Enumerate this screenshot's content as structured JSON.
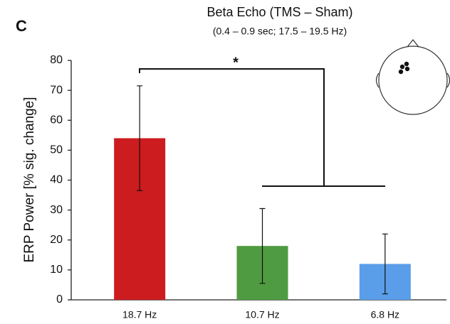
{
  "chart_data": {
    "type": "bar",
    "panel_label": "C",
    "title": "Beta Echo (TMS – Sham)",
    "subtitle": "(0.4 – 0.9 sec; 17.5 – 19.5 Hz)",
    "y_label": "ERP Power [% sig. change]",
    "annotation": "*",
    "categories": [
      "18.7 Hz",
      "10.7 Hz",
      "6.8 Hz"
    ],
    "values": [
      54,
      18,
      12
    ],
    "errors": [
      17.5,
      12.5,
      10
    ],
    "colors": [
      "#cc1c1f",
      "#4f9b41",
      "#5a9de8"
    ],
    "ylim": [
      0,
      80
    ],
    "yticks": [
      0,
      10,
      20,
      30,
      40,
      50,
      60,
      70,
      80
    ],
    "grid": false
  }
}
